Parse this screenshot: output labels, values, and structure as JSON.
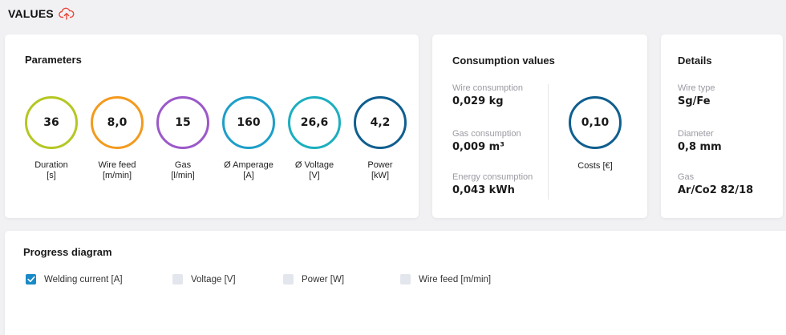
{
  "page": {
    "title": "VALUES"
  },
  "parameters": {
    "title": "Parameters",
    "gauges": [
      {
        "value": "36",
        "label_line1": "Duration",
        "label_line2": "[s]",
        "color": "#b5c723"
      },
      {
        "value": "8,0",
        "label_line1": "Wire feed",
        "label_line2": "[m/min]",
        "color": "#f39a1e"
      },
      {
        "value": "15",
        "label_line1": "Gas",
        "label_line2": "[l/min]",
        "color": "#9b59c9"
      },
      {
        "value": "160",
        "label_line1": "Ø Amperage",
        "label_line2": "[A]",
        "color": "#1e9fc9"
      },
      {
        "value": "26,6",
        "label_line1": "Ø Voltage",
        "label_line2": "[V]",
        "color": "#1cafbf"
      },
      {
        "value": "4,2",
        "label_line1": "Power",
        "label_line2": "[kW]",
        "color": "#0f5f8f"
      }
    ]
  },
  "consumption": {
    "title": "Consumption values",
    "wire": {
      "label": "Wire consumption",
      "value": "0,029 kg"
    },
    "gas": {
      "label": "Gas consumption",
      "value": "0,009 m³"
    },
    "energy": {
      "label": "Energy consumption",
      "value": "0,043 kWh"
    },
    "costs": {
      "value": "0,10",
      "label": "Costs [€]",
      "color": "#0f5f8f"
    }
  },
  "details": {
    "title": "Details",
    "wire_type": {
      "label": "Wire type",
      "value": "Sg/Fe"
    },
    "diameter": {
      "label": "Diameter",
      "value": "0,8 mm"
    },
    "gas": {
      "label": "Gas",
      "value": "Ar/Co2 82/18"
    }
  },
  "progress": {
    "title": "Progress diagram",
    "options": [
      {
        "label": "Welding current [A]",
        "checked": true
      },
      {
        "label": "Voltage [V]",
        "checked": false
      },
      {
        "label": "Power [W]",
        "checked": false
      },
      {
        "label": "Wire feed [m/min]",
        "checked": false
      }
    ]
  },
  "colors": {
    "accent_red": "#e5493a",
    "checkbox_blue": "#1a8ac7"
  },
  "icons": {
    "title_icon": "cloud-upload-icon",
    "check_icon": "checkmark-icon"
  }
}
